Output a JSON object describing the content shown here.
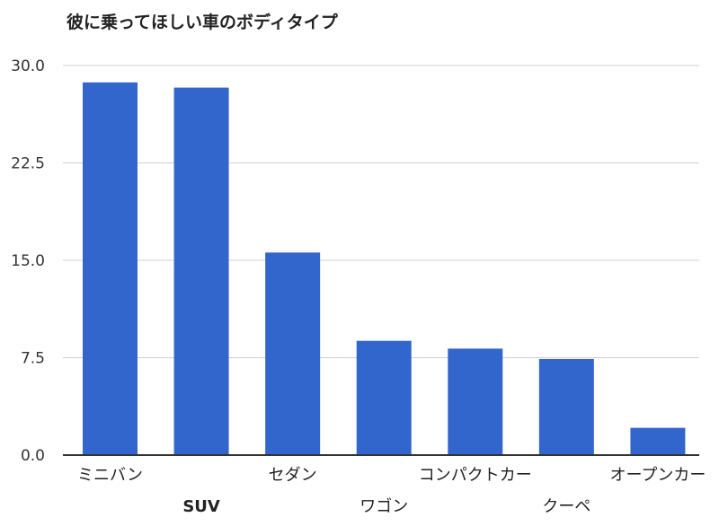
{
  "chart_data": {
    "type": "bar",
    "title": "彼に乗ってほしい車のボディタイプ",
    "xlabel": "",
    "ylabel": "",
    "categories": [
      "ミニバン",
      "SUV",
      "セダン",
      "ワゴン",
      "コンパクトカー",
      "クーペ",
      "オープンカー"
    ],
    "values": [
      28.7,
      28.3,
      15.6,
      8.8,
      8.2,
      7.4,
      2.1
    ],
    "ylim": [
      0,
      30
    ],
    "yticks": [
      "0.0",
      "7.5",
      "15.0",
      "22.5",
      "30.0"
    ],
    "grid": true,
    "legend": "none",
    "bar_color": "#3366cc"
  }
}
